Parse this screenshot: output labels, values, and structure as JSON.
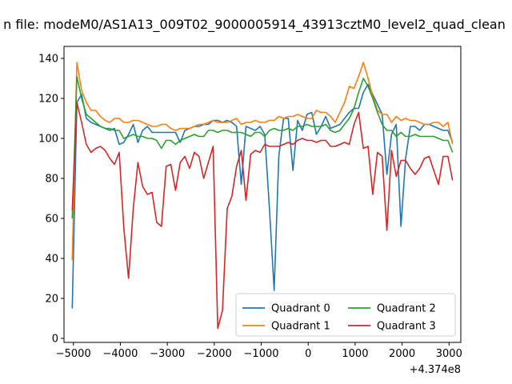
{
  "chart_data": {
    "type": "line",
    "title": "n file: modeM0/AS1A13_009T02_9000005914_43913cztM0_level2_quad_clean",
    "xlabel": "",
    "ylabel": "",
    "offset_label": "+4.374e8",
    "xlim": [
      -5200,
      3250
    ],
    "ylim": [
      -2,
      146
    ],
    "x_ticks": [
      -5000,
      -4000,
      -3000,
      -2000,
      -1000,
      0,
      1000,
      2000,
      3000
    ],
    "x_tick_labels": [
      "−5000",
      "−4000",
      "−3000",
      "−2000",
      "−1000",
      "0",
      "1000",
      "2000",
      "3000"
    ],
    "y_ticks": [
      0,
      20,
      40,
      60,
      80,
      100,
      120,
      140
    ],
    "y_tick_labels": [
      "0",
      "20",
      "40",
      "60",
      "80",
      "100",
      "120",
      "140"
    ],
    "grid": false,
    "legend_position": "lower-right",
    "x": [
      -5025,
      -4925,
      -4825,
      -4725,
      -4625,
      -4525,
      -4425,
      -4325,
      -4225,
      -4125,
      -4025,
      -3925,
      -3825,
      -3725,
      -3625,
      -3525,
      -3425,
      -3325,
      -3225,
      -3125,
      -3025,
      -2925,
      -2825,
      -2725,
      -2625,
      -2525,
      -2425,
      -2325,
      -2225,
      -2125,
      -2025,
      -1925,
      -1825,
      -1725,
      -1625,
      -1525,
      -1425,
      -1325,
      -1225,
      -1125,
      -1025,
      -925,
      -825,
      -725,
      -625,
      -525,
      -425,
      -325,
      -225,
      -125,
      -25,
      75,
      175,
      275,
      375,
      475,
      575,
      675,
      775,
      875,
      975,
      1075,
      1175,
      1275,
      1375,
      1475,
      1575,
      1675,
      1775,
      1875,
      1975,
      2075,
      2175,
      2275,
      2375,
      2475,
      2575,
      2675,
      2775,
      2875,
      2975,
      3075
    ],
    "series": [
      {
        "name": "Quadrant 0",
        "color": "#1f77b4",
        "values": [
          15,
          118,
          122,
          110,
          108,
          107,
          106,
          105,
          104,
          105,
          97,
          98,
          102,
          107,
          98,
          104,
          106,
          103,
          103,
          103,
          103,
          103,
          103,
          98,
          104,
          105,
          106,
          106,
          107,
          107,
          109,
          109,
          108,
          109,
          108,
          106,
          77,
          106,
          105,
          104,
          106,
          102,
          65,
          24,
          91,
          110,
          110,
          84,
          109,
          104,
          112,
          113,
          102,
          106,
          111,
          105,
          106,
          107,
          110,
          113,
          115,
          115,
          123,
          127,
          122,
          117,
          112,
          82,
          102,
          107,
          56,
          90,
          106,
          106,
          104,
          107,
          107,
          106,
          105,
          104,
          104,
          98
        ]
      },
      {
        "name": "Quadrant 1",
        "color": "#ff7f0e",
        "values": [
          39,
          138,
          124,
          118,
          114,
          114,
          111,
          109,
          108,
          110,
          110,
          108,
          108,
          109,
          109,
          108,
          107,
          106,
          106,
          107,
          107,
          105,
          104,
          105,
          105,
          105,
          106,
          107,
          107,
          108,
          109,
          108,
          108,
          108,
          109,
          110,
          107,
          108,
          108,
          109,
          108,
          108,
          109,
          109,
          111,
          110,
          111,
          111,
          112,
          111,
          110,
          110,
          114,
          113,
          113,
          111,
          108,
          113,
          118,
          126,
          125,
          131,
          138,
          130,
          121,
          114,
          112,
          112,
          108,
          111,
          109,
          110,
          109,
          109,
          108,
          107,
          107,
          108,
          108,
          106,
          108,
          97
        ]
      },
      {
        "name": "Quadrant 2",
        "color": "#2ca02c",
        "values": [
          60,
          131,
          120,
          112,
          110,
          108,
          106,
          105,
          105,
          104,
          104,
          100,
          101,
          102,
          101,
          101,
          100,
          100,
          99,
          95,
          99,
          99,
          97,
          99,
          100,
          101,
          102,
          101,
          101,
          104,
          104,
          103,
          104,
          104,
          103,
          103,
          103,
          102,
          101,
          103,
          103,
          101,
          104,
          105,
          104,
          104,
          105,
          104,
          106,
          106,
          107,
          106,
          106,
          106,
          107,
          104,
          103,
          104,
          107,
          110,
          115,
          123,
          130,
          126,
          120,
          113,
          107,
          104,
          104,
          101,
          103,
          101,
          101,
          102,
          101,
          101,
          101,
          101,
          100,
          99,
          99,
          93
        ]
      },
      {
        "name": "Quadrant 3",
        "color": "#d62728",
        "values": [
          64,
          118,
          108,
          97,
          93,
          95,
          96,
          94,
          90,
          87,
          93,
          55,
          30,
          65,
          88,
          76,
          72,
          73,
          58,
          56,
          86,
          87,
          74,
          88,
          91,
          85,
          93,
          91,
          80,
          88,
          96,
          5,
          14,
          65,
          71,
          86,
          94,
          69,
          92,
          94,
          93,
          97,
          96,
          96,
          96,
          97,
          98,
          97,
          99,
          100,
          99,
          99,
          98,
          99,
          99,
          96,
          96,
          97,
          98,
          97,
          107,
          113,
          95,
          96,
          72,
          93,
          91,
          54,
          94,
          81,
          89,
          89,
          85,
          82,
          85,
          90,
          91,
          84,
          77,
          91,
          91,
          79
        ]
      }
    ]
  }
}
